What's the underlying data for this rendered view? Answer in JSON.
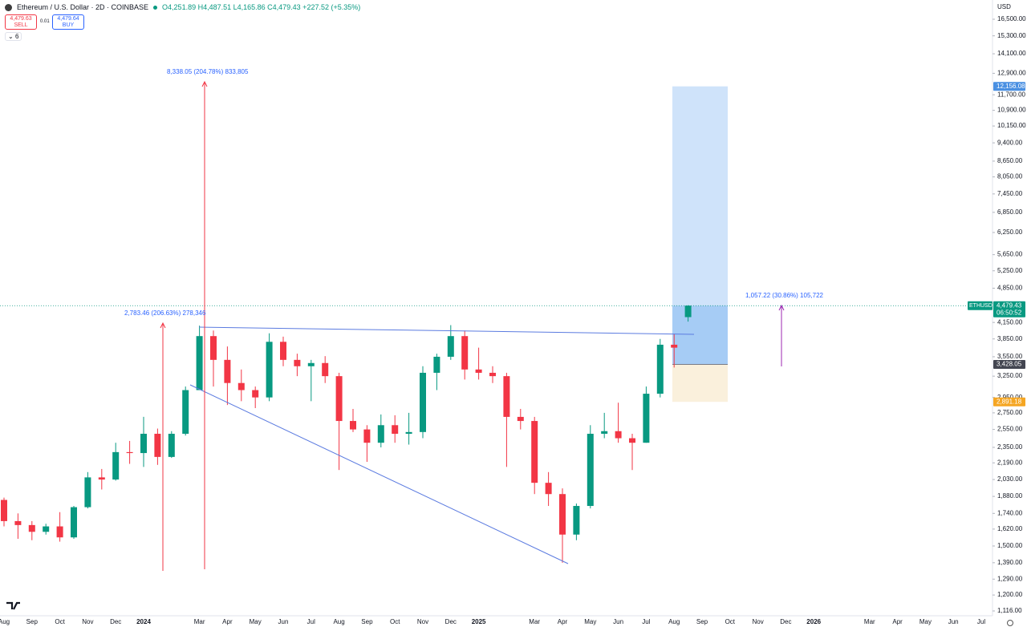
{
  "chart_data": {
    "type": "candlestick",
    "title": "Ethereum / U.S. Dollar · 2D · COINBASE",
    "ohlc_text": "O4,251.89 H4,487.51 L4,165.86 C4,479.43 +227.52 (+5.35%)",
    "sell_price": "4,479.63",
    "sell_label": "SELL",
    "spread": "0.01",
    "buy_price": "4,479.64",
    "buy_label": "BUY",
    "indicator_count": "6",
    "currency": "USD",
    "symbol_tag": "ETHUSD",
    "countdown": "06:50:52",
    "log_scale": true,
    "grid": false,
    "up_color": "#089981",
    "down_color": "#f23645",
    "categories": [
      "Aug",
      null,
      "Sep",
      null,
      "Oct",
      null,
      "Nov",
      null,
      "Dec",
      null,
      "2024",
      null,
      null,
      null,
      "Mar",
      null,
      "Apr",
      null,
      "May",
      null,
      "Jun",
      null,
      "Jul",
      null,
      "Aug",
      null,
      "Sep",
      null,
      "Oct",
      null,
      "Nov",
      null,
      "Dec",
      null,
      "2025",
      null,
      null,
      null,
      "Mar",
      null,
      "Apr",
      null,
      "May",
      null,
      "Jun",
      null,
      "Jul",
      null,
      "Aug",
      null,
      "Sep",
      null,
      "Oct",
      null,
      "Nov",
      null,
      "Dec",
      null,
      "2026",
      null,
      null,
      null,
      "Mar",
      null,
      "Apr",
      null,
      "May",
      null,
      "Jun",
      null,
      "Jul",
      null
    ],
    "series": [
      {
        "name": "open",
        "values": [
          1850,
          1680,
          1650,
          1600,
          1640,
          1560,
          1790,
          2050,
          2030,
          2300,
          2290,
          2500,
          2250,
          2500,
          3050,
          3900,
          3500,
          3150,
          3050,
          2950,
          3800,
          3500,
          3400,
          3450,
          3250,
          2650,
          2550,
          2400,
          2600,
          2500,
          2520,
          3300,
          3550,
          3900,
          3350,
          3300,
          3250,
          2700,
          2650,
          2000,
          1900,
          1580,
          1800,
          2500,
          2530,
          2450,
          2400,
          3000,
          3750,
          4251.89,
          null,
          null,
          null,
          null,
          null,
          null,
          null,
          null,
          null,
          null,
          null,
          null,
          null,
          null,
          null,
          null,
          null,
          null,
          null,
          null,
          null,
          null
        ]
      },
      {
        "name": "high",
        "values": [
          1870,
          1740,
          1680,
          1660,
          1750,
          1800,
          2100,
          2130,
          2400,
          2420,
          2700,
          2560,
          2530,
          3100,
          4090,
          4000,
          3720,
          3350,
          3100,
          3950,
          3890,
          3600,
          3500,
          3560,
          3300,
          2800,
          2600,
          2730,
          2720,
          2750,
          3400,
          3600,
          4100,
          4000,
          3700,
          3400,
          3300,
          2800,
          2700,
          2100,
          1950,
          1820,
          2600,
          2750,
          2880,
          2500,
          3100,
          3850,
          3940,
          4487.51,
          null,
          null,
          null,
          null,
          null,
          null,
          null,
          null,
          null,
          null,
          null,
          null,
          null,
          null,
          null,
          null,
          null,
          null,
          null,
          null,
          null,
          null
        ]
      },
      {
        "name": "low",
        "values": [
          1640,
          1550,
          1540,
          1580,
          1530,
          1550,
          1780,
          1940,
          2020,
          2180,
          2150,
          2170,
          2240,
          2480,
          3050,
          3100,
          2850,
          2900,
          2810,
          2900,
          3400,
          3250,
          2900,
          3150,
          2120,
          2520,
          2200,
          2350,
          2400,
          2380,
          2450,
          3050,
          3500,
          3200,
          3200,
          3150,
          2150,
          2550,
          1900,
          1800,
          1390,
          1540,
          1780,
          2450,
          2400,
          2120,
          2400,
          2950,
          3380,
          4165.86,
          null,
          null,
          null,
          null,
          null,
          null,
          null,
          null,
          null,
          null,
          null,
          null,
          null,
          null,
          null,
          null,
          null,
          null,
          null,
          null,
          null,
          null
        ]
      },
      {
        "name": "close",
        "values": [
          1680,
          1650,
          1600,
          1640,
          1560,
          1790,
          2050,
          2030,
          2300,
          2290,
          2500,
          2250,
          2500,
          3050,
          3900,
          3500,
          3150,
          3050,
          2950,
          3800,
          3500,
          3400,
          3450,
          3250,
          2650,
          2550,
          2400,
          2600,
          2500,
          2520,
          3300,
          3550,
          3900,
          3350,
          3300,
          3250,
          2700,
          2650,
          2000,
          1900,
          1580,
          1800,
          2500,
          2530,
          2450,
          2400,
          3000,
          3750,
          3700,
          4479.43,
          null,
          null,
          null,
          null,
          null,
          null,
          null,
          null,
          null,
          null,
          null,
          null,
          null,
          null,
          null,
          null,
          null,
          null,
          null,
          null,
          null,
          null
        ]
      }
    ],
    "ylim": [
      1116,
      16500
    ],
    "yticks": [
      {
        "value": 16500,
        "label": "16,500.00"
      },
      {
        "value": 15300,
        "label": "15,300.00"
      },
      {
        "value": 14100,
        "label": "14,100.00"
      },
      {
        "value": 12900,
        "label": "12,900.00"
      },
      {
        "value": 11700,
        "label": "11,700.00"
      },
      {
        "value": 10900,
        "label": "10,900.00"
      },
      {
        "value": 10150,
        "label": "10,150.00"
      },
      {
        "value": 9400,
        "label": "9,400.00"
      },
      {
        "value": 8650,
        "label": "8,650.00"
      },
      {
        "value": 8050,
        "label": "8,050.00"
      },
      {
        "value": 7450,
        "label": "7,450.00"
      },
      {
        "value": 6850,
        "label": "6,850.00"
      },
      {
        "value": 6250,
        "label": "6,250.00"
      },
      {
        "value": 5650,
        "label": "5,650.00"
      },
      {
        "value": 5250,
        "label": "5,250.00"
      },
      {
        "value": 4850,
        "label": "4,850.00"
      },
      {
        "value": 4150,
        "label": "4,150.00"
      },
      {
        "value": 3850,
        "label": "3,850.00"
      },
      {
        "value": 3550,
        "label": "3,550.00"
      },
      {
        "value": 3250,
        "label": "3,250.00"
      },
      {
        "value": 2950,
        "label": "2,950.00"
      },
      {
        "value": 2750,
        "label": "2,750.00"
      },
      {
        "value": 2550,
        "label": "2,550.00"
      },
      {
        "value": 2350,
        "label": "2,350.00"
      },
      {
        "value": 2190,
        "label": "2,190.00"
      },
      {
        "value": 2030,
        "label": "2,030.00"
      },
      {
        "value": 1880,
        "label": "1,880.00"
      },
      {
        "value": 1740,
        "label": "1,740.00"
      },
      {
        "value": 1620,
        "label": "1,620.00"
      },
      {
        "value": 1500,
        "label": "1,500.00"
      },
      {
        "value": 1390,
        "label": "1,390.00"
      },
      {
        "value": 1290,
        "label": "1,290.00"
      },
      {
        "value": 1200,
        "label": "1,200.00"
      },
      {
        "value": 1116,
        "label": "1,116.00"
      }
    ],
    "price_labels": [
      {
        "value": 4479.43,
        "label": "4,479.43",
        "color": "#089981"
      },
      {
        "value": 12156.08,
        "label": "12,156.08",
        "color": "#4a90e2"
      },
      {
        "value": 3428.05,
        "label": "3,428.05",
        "color": "#434651"
      },
      {
        "value": 2891.18,
        "label": "2,891.18",
        "color": "#f5a623"
      }
    ],
    "annotations": [
      "8,338.05 (204.78%) 833,805",
      "2,783.46 (206.63%) 278,346",
      "1,057.22 (30.86%) 105,722"
    ]
  }
}
